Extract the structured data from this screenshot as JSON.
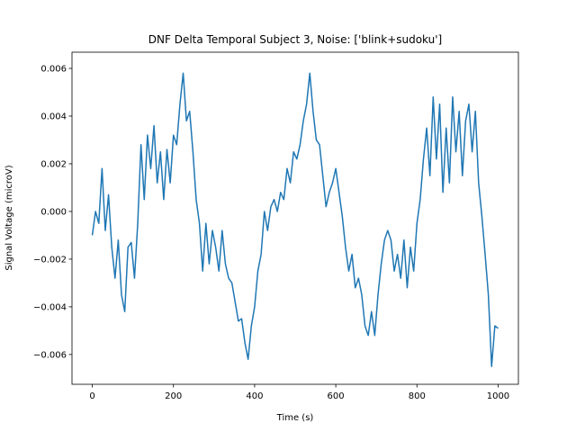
{
  "chart_data": {
    "type": "line",
    "title": "DNF Delta Temporal Subject 3, Noise: ['blink+sudoku']",
    "x_label": "Time (s)",
    "y_label": "Signal Voltage (microV)",
    "color": "#1f77b4",
    "x": [
      0,
      8,
      16,
      24,
      32,
      40,
      48,
      56,
      64,
      72,
      80,
      88,
      96,
      104,
      112,
      120,
      128,
      136,
      144,
      152,
      160,
      168,
      176,
      184,
      192,
      200,
      208,
      216,
      224,
      232,
      240,
      248,
      256,
      264,
      272,
      280,
      288,
      296,
      304,
      312,
      320,
      328,
      336,
      344,
      352,
      360,
      368,
      376,
      384,
      392,
      400,
      408,
      416,
      424,
      432,
      440,
      448,
      456,
      464,
      472,
      480,
      488,
      496,
      504,
      512,
      520,
      528,
      536,
      544,
      552,
      560,
      568,
      576,
      584,
      592,
      600,
      608,
      616,
      624,
      632,
      640,
      648,
      656,
      664,
      672,
      680,
      688,
      696,
      704,
      712,
      720,
      728,
      736,
      744,
      752,
      760,
      768,
      776,
      784,
      792,
      800,
      808,
      816,
      824,
      832,
      840,
      848,
      856,
      864,
      872,
      880,
      888,
      896,
      904,
      912,
      920,
      928,
      936,
      944,
      952,
      960,
      968,
      976,
      984,
      992,
      1000
    ],
    "values": [
      -0.001,
      0.0,
      -0.0005,
      0.0018,
      -0.0008,
      0.0007,
      -0.0015,
      -0.0028,
      -0.0012,
      -0.0035,
      -0.0042,
      -0.0015,
      -0.0013,
      -0.0028,
      -0.0005,
      0.0028,
      0.0005,
      0.0032,
      0.0018,
      0.0036,
      0.0012,
      0.0025,
      0.0005,
      0.0026,
      0.0012,
      0.0032,
      0.0028,
      0.0045,
      0.0058,
      0.0038,
      0.0042,
      0.0025,
      0.0005,
      -0.0005,
      -0.0025,
      -0.0005,
      -0.0022,
      -0.0008,
      -0.0015,
      -0.0025,
      -0.0008,
      -0.0022,
      -0.0028,
      -0.003,
      -0.0038,
      -0.0046,
      -0.0045,
      -0.0055,
      -0.0062,
      -0.0048,
      -0.004,
      -0.0025,
      -0.0018,
      0.0,
      -0.0008,
      0.0002,
      0.0005,
      0.0,
      0.0008,
      0.0005,
      0.0018,
      0.0012,
      0.0025,
      0.0022,
      0.0028,
      0.0038,
      0.0045,
      0.0058,
      0.0042,
      0.003,
      0.0028,
      0.0015,
      0.0002,
      0.0008,
      0.0012,
      0.0018,
      0.0008,
      -0.0002,
      -0.0015,
      -0.0025,
      -0.0018,
      -0.0032,
      -0.0028,
      -0.0035,
      -0.0048,
      -0.0052,
      -0.0042,
      -0.0052,
      -0.0035,
      -0.0022,
      -0.0012,
      -0.0008,
      -0.0012,
      -0.0025,
      -0.0018,
      -0.0028,
      -0.0012,
      -0.0032,
      -0.0015,
      -0.0025,
      -0.0005,
      0.0005,
      0.0022,
      0.0035,
      0.0015,
      0.0048,
      0.0022,
      0.0045,
      0.0008,
      0.0035,
      0.0012,
      0.0048,
      0.0025,
      0.0042,
      0.0015,
      0.0038,
      0.0045,
      0.0025,
      0.0042,
      0.0012,
      -0.0002,
      -0.0018,
      -0.0035,
      -0.0065,
      -0.0048,
      -0.0049
    ],
    "xlim": [
      -50,
      1050
    ],
    "ylim": [
      -0.00725,
      0.00668
    ],
    "xticks": [
      0,
      200,
      400,
      600,
      800,
      1000
    ],
    "yticks": [
      {
        "value": -0.006,
        "label": "−0.006"
      },
      {
        "value": -0.004,
        "label": "−0.004"
      },
      {
        "value": -0.002,
        "label": "−0.002"
      },
      {
        "value": 0,
        "label": "0.000"
      },
      {
        "value": 0.002,
        "label": "0.002"
      },
      {
        "value": 0.004,
        "label": "0.004"
      },
      {
        "value": 0.006,
        "label": "0.006"
      }
    ]
  }
}
